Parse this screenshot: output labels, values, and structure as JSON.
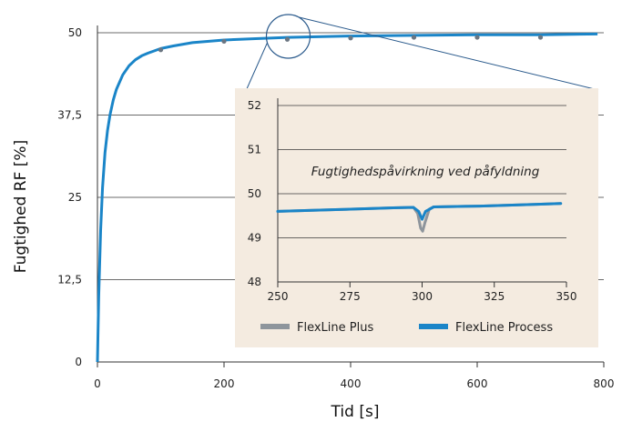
{
  "chart_data": [
    {
      "type": "line",
      "xlabel": "Tid [s]",
      "ylabel": "Fugtighed RF [%]",
      "xlim": [
        0,
        800
      ],
      "ylim": [
        0,
        50
      ],
      "x_ticks": [
        "0",
        "200",
        "400",
        "600",
        "800"
      ],
      "y_ticks": [
        "0",
        "12,5",
        "25",
        "37,5",
        "50"
      ],
      "grid": "horizontal",
      "series": [
        {
          "name": "FlexLine Process",
          "color": "#1a85c8",
          "x": [
            0,
            2,
            5,
            8,
            12,
            16,
            20,
            25,
            30,
            40,
            50,
            60,
            70,
            80,
            100,
            120,
            150,
            200,
            250,
            300,
            400,
            500,
            600,
            700,
            790
          ],
          "y": [
            0,
            10,
            20,
            26.5,
            31.8,
            35.2,
            37.6,
            39.8,
            41.4,
            43.6,
            45,
            45.9,
            46.5,
            46.9,
            47.6,
            48,
            48.5,
            48.9,
            49.1,
            49.3,
            49.5,
            49.6,
            49.7,
            49.7,
            49.8
          ]
        },
        {
          "name": "FlexLine Plus",
          "color": "#6b7682",
          "x": [
            100,
            200,
            300,
            400,
            500,
            600,
            700
          ],
          "y": [
            47.4,
            48.7,
            49.0,
            49.2,
            49.3,
            49.3,
            49.3
          ]
        }
      ]
    },
    {
      "type": "line",
      "title": "Fugtighedspåvirkning ved påfyldning",
      "xlim": [
        250,
        350
      ],
      "ylim": [
        48,
        52
      ],
      "x_ticks": [
        "250",
        "275",
        "300",
        "325",
        "350"
      ],
      "y_ticks": [
        "48",
        "49",
        "50",
        "51",
        "52"
      ],
      "grid": "horizontal",
      "legend": "bottom",
      "background": "#f4ebe0",
      "series": [
        {
          "name": "FlexLine Plus",
          "color": "#8e959c",
          "x": [
            250,
            270,
            290,
            297,
            298.5,
            299.5,
            300.2,
            301,
            302.5,
            304,
            320,
            340,
            348
          ],
          "y": [
            49.6,
            49.64,
            49.68,
            49.69,
            49.55,
            49.22,
            49.15,
            49.35,
            49.65,
            49.7,
            49.72,
            49.76,
            49.78
          ]
        },
        {
          "name": "FlexLine Process",
          "color": "#1a85c8",
          "x": [
            250,
            270,
            290,
            297,
            298.8,
            300,
            301.2,
            304,
            320,
            340,
            348
          ],
          "y": [
            49.6,
            49.64,
            49.68,
            49.69,
            49.6,
            49.42,
            49.6,
            49.7,
            49.72,
            49.76,
            49.78
          ]
        }
      ]
    }
  ]
}
